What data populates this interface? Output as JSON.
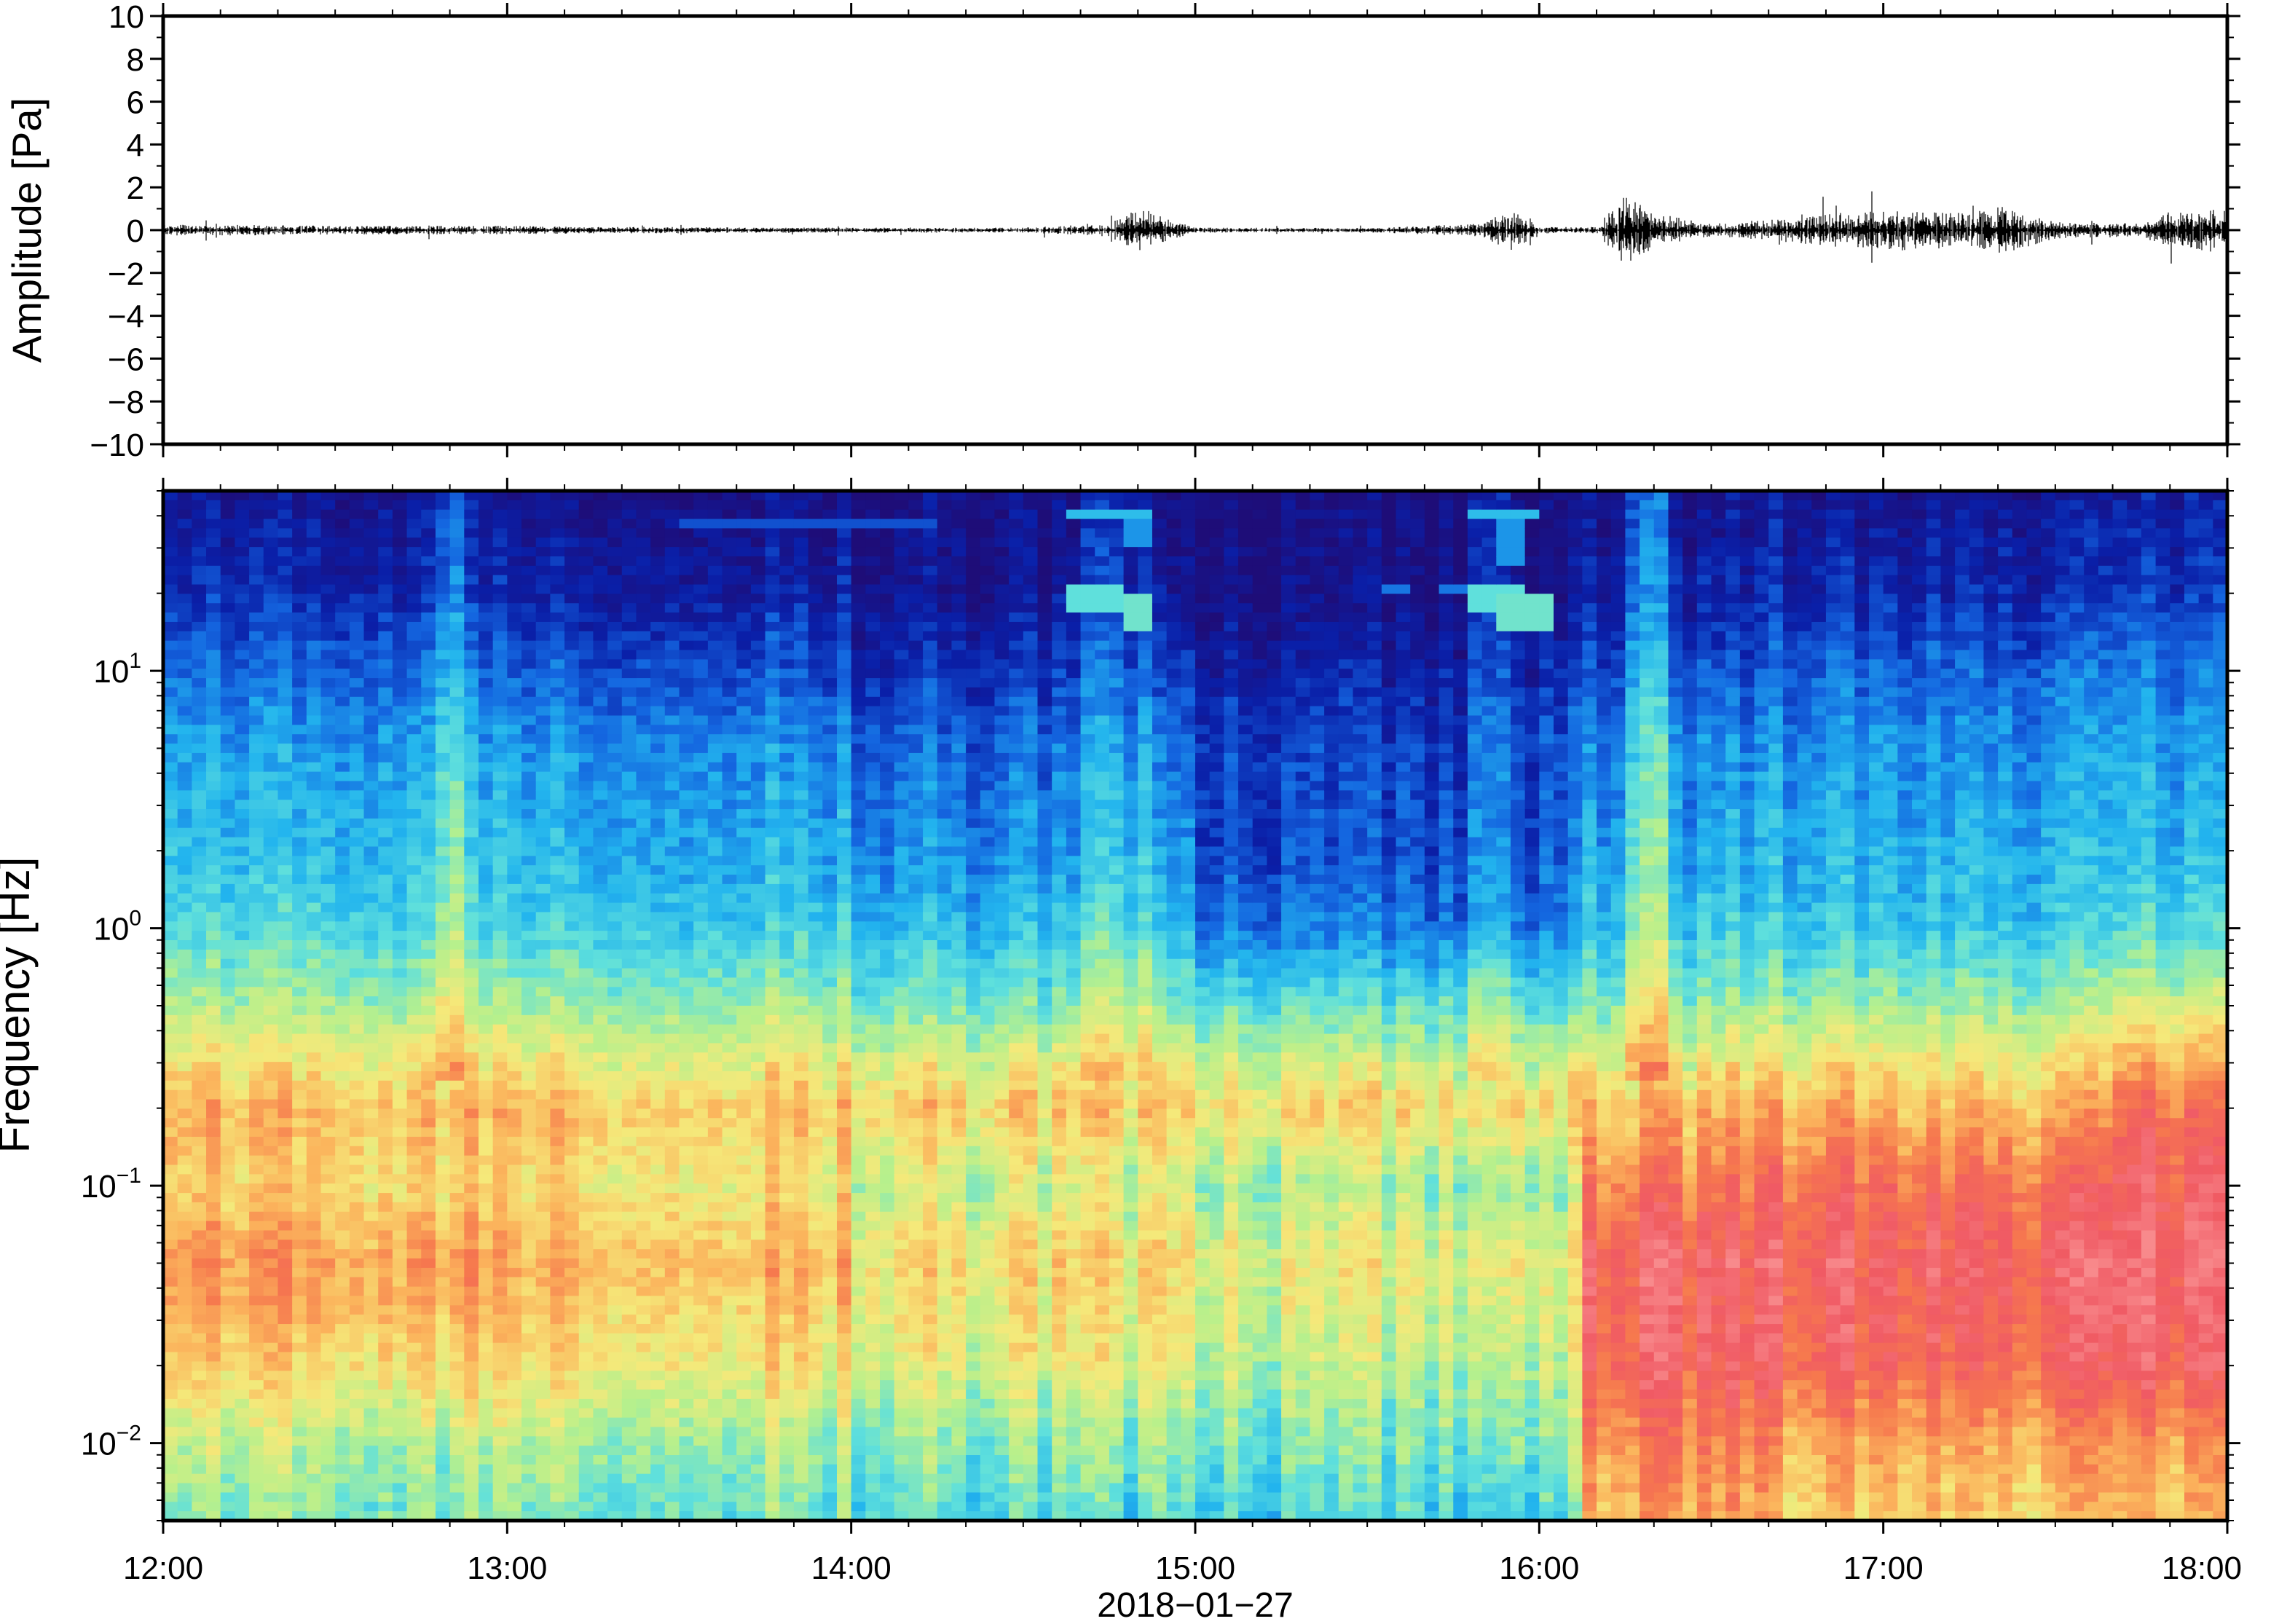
{
  "chart_data": [
    {
      "type": "line",
      "panel": "waveform",
      "title": "",
      "ylabel": "Amplitude [Pa]",
      "ylim": [
        -10,
        10
      ],
      "yticks": [
        -10,
        -8,
        -6,
        -4,
        -2,
        0,
        2,
        4,
        6,
        8,
        10
      ],
      "ytick_labels": [
        "−10",
        "−8",
        "−6",
        "−4",
        "−2",
        "0",
        "2",
        "4",
        "6",
        "8",
        "10"
      ],
      "x_range": [
        "12:00",
        "18:00"
      ],
      "grid": false,
      "envelope": {
        "x": [
          "12:00",
          "12:15",
          "12:30",
          "12:45",
          "13:00",
          "13:15",
          "13:30",
          "13:45",
          "14:00",
          "14:15",
          "14:30",
          "14:45",
          "14:50",
          "15:00",
          "15:30",
          "15:50",
          "15:55",
          "16:00",
          "16:10",
          "16:15",
          "16:20",
          "16:30",
          "16:45",
          "17:00",
          "17:15",
          "17:20",
          "17:30",
          "17:45",
          "17:50",
          "18:00"
        ],
        "amplitude": [
          0.25,
          0.25,
          0.2,
          0.2,
          0.2,
          0.15,
          0.15,
          0.12,
          0.12,
          0.12,
          0.12,
          0.3,
          1.0,
          0.12,
          0.1,
          0.3,
          1.0,
          0.15,
          0.15,
          1.8,
          0.8,
          0.3,
          0.6,
          1.0,
          0.8,
          1.2,
          0.4,
          0.3,
          0.9,
          1.1
        ]
      }
    },
    {
      "type": "heatmap",
      "panel": "spectrogram",
      "title": "",
      "ylabel": "Frequency [Hz]",
      "xlabel": "2018−01−27",
      "y_scale": "log",
      "ylim": [
        0.005,
        50
      ],
      "yticks": [
        0.01,
        0.1,
        1,
        10
      ],
      "ytick_base": "10",
      "ytick_exponents": [
        "−2",
        "−1",
        "0",
        "1"
      ],
      "x_ticks": [
        "12:00",
        "13:00",
        "14:00",
        "15:00",
        "16:00",
        "17:00",
        "18:00"
      ],
      "colormap": [
        "#1e0d78",
        "#0a1fa8",
        "#1466e0",
        "#22b4ee",
        "#5fe0dc",
        "#b7f08c",
        "#f5e97a",
        "#fbb45c",
        "#f6784e",
        "#f05a64",
        "#f88a8c"
      ],
      "level_unit": "relative level 0-10 (no colorbar shown)",
      "profile_freq_hz": [
        0.005,
        0.01,
        0.02,
        0.05,
        0.1,
        0.2,
        0.5,
        1,
        2,
        5,
        10,
        20,
        50
      ],
      "profiles": [
        {
          "x_start": "12:00",
          "x_end": "13:00",
          "levels": [
            4.5,
            5.2,
            6.5,
            7.5,
            6.5,
            7.0,
            5.0,
            3.8,
            3.3,
            2.8,
            2.1,
            1.2,
            0.6
          ]
        },
        {
          "x_start": "13:00",
          "x_end": "14:00",
          "levels": [
            4.3,
            5.0,
            6.2,
            7.0,
            6.2,
            6.8,
            4.8,
            3.6,
            3.0,
            2.6,
            1.8,
            0.9,
            0.4
          ]
        },
        {
          "x_start": "14:00",
          "x_end": "15:00",
          "levels": [
            3.8,
            4.5,
            5.6,
            6.2,
            5.3,
            6.5,
            4.3,
            3.1,
            2.5,
            2.0,
            1.2,
            0.5,
            0.2
          ]
        },
        {
          "x_start": "15:00",
          "x_end": "16:00",
          "levels": [
            3.6,
            4.3,
            5.1,
            5.8,
            4.8,
            6.3,
            4.0,
            2.2,
            1.6,
            1.5,
            0.9,
            0.3,
            0.1
          ]
        },
        {
          "x_start": "16:00",
          "x_end": "16:08",
          "levels": [
            4.0,
            4.6,
            5.3,
            5.8,
            4.8,
            6.3,
            4.1,
            2.4,
            2.0,
            1.8,
            1.2,
            0.4,
            0.2
          ]
        },
        {
          "x_start": "16:08",
          "x_end": "16:40",
          "levels": [
            7.0,
            7.8,
            8.8,
            9.0,
            8.0,
            6.8,
            4.6,
            3.4,
            2.9,
            2.4,
            1.7,
            0.9,
            0.4
          ]
        },
        {
          "x_start": "16:40",
          "x_end": "17:40",
          "levels": [
            6.5,
            7.2,
            8.6,
            9.0,
            8.3,
            6.9,
            4.8,
            3.4,
            3.0,
            2.6,
            2.0,
            1.1,
            0.5
          ]
        },
        {
          "x_start": "17:40",
          "x_end": "18:00",
          "levels": [
            6.8,
            7.5,
            9.0,
            9.4,
            9.0,
            8.3,
            5.6,
            3.8,
            3.2,
            2.8,
            2.3,
            1.4,
            0.8
          ]
        }
      ],
      "bright_columns": [
        {
          "x_start": "12:47",
          "x_end": "12:52",
          "boost": 1.3
        },
        {
          "x_start": "14:40",
          "x_end": "14:52",
          "boost": 0.8
        },
        {
          "x_start": "15:47",
          "x_end": "15:56",
          "boost": 0.9
        },
        {
          "x_start": "16:15",
          "x_end": "16:22",
          "boost": 1.4
        }
      ],
      "tonal_features": [
        {
          "x_start": "14:38",
          "x_end": "14:48",
          "freq_min_hz": 17.5,
          "freq_max_hz": 22.5,
          "level": 4.0
        },
        {
          "x_start": "14:48",
          "x_end": "14:52",
          "freq_min_hz": 14.5,
          "freq_max_hz": 19.5,
          "level": 4.2
        },
        {
          "x_start": "14:38",
          "x_end": "14:52",
          "freq_min_hz": 40,
          "freq_max_hz": 43,
          "level": 3.2
        },
        {
          "x_start": "14:48",
          "x_end": "14:52",
          "freq_min_hz": 30,
          "freq_max_hz": 40,
          "level": 2.6
        },
        {
          "x_start": "15:47",
          "x_end": "15:57",
          "freq_min_hz": 17.5,
          "freq_max_hz": 22.5,
          "level": 4.0
        },
        {
          "x_start": "15:52",
          "x_end": "16:02",
          "freq_min_hz": 14.5,
          "freq_max_hz": 19.5,
          "level": 4.2
        },
        {
          "x_start": "15:47",
          "x_end": "16:00",
          "freq_min_hz": 40,
          "freq_max_hz": 43,
          "level": 3.2
        },
        {
          "x_start": "15:52",
          "x_end": "15:57",
          "freq_min_hz": 26,
          "freq_max_hz": 40,
          "level": 2.6
        },
        {
          "x_start": "15:25",
          "x_end": "15:32",
          "freq_min_hz": 21.5,
          "freq_max_hz": 22.5,
          "level": 2.4
        },
        {
          "x_start": "15:32",
          "x_end": "15:37",
          "freq_min_hz": 20.0,
          "freq_max_hz": 20.8,
          "level": 2.2
        },
        {
          "x_start": "15:42",
          "x_end": "15:47",
          "freq_min_hz": 20.5,
          "freq_max_hz": 21.3,
          "level": 2.2
        },
        {
          "x_start": "13:30",
          "x_end": "14:15",
          "freq_min_hz": 36,
          "freq_max_hz": 37.5,
          "level": 1.7
        }
      ]
    }
  ]
}
